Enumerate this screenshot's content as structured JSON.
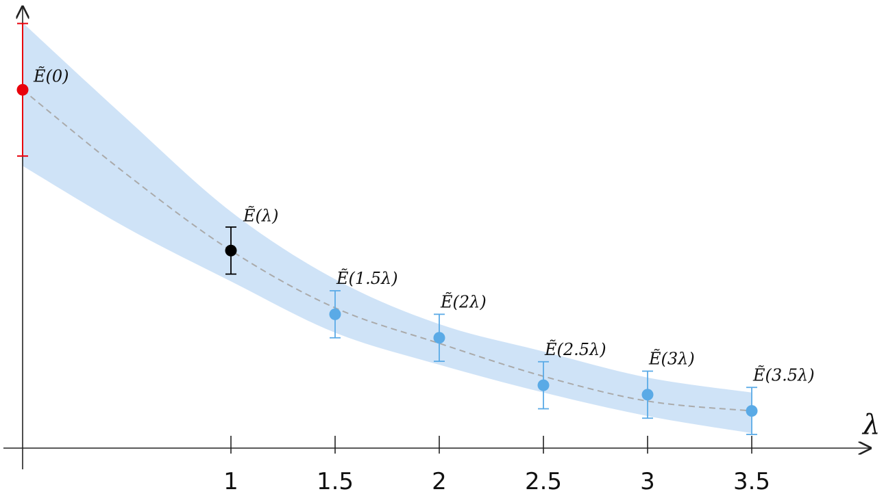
{
  "chart_data": {
    "type": "scatter",
    "title": "",
    "xlabel": "λ",
    "ylabel": "",
    "xlim": [
      0,
      4.1
    ],
    "ylim": [
      0,
      1
    ],
    "grid": false,
    "x_ticks": [
      "1",
      "1.5",
      "2",
      "2.5",
      "3",
      "3.5"
    ],
    "points": [
      {
        "x": 0,
        "y": 0.838,
        "err": 0.155,
        "label": "Ẽ(0)",
        "color": "#e8000b"
      },
      {
        "x": 1,
        "y": 0.462,
        "err": 0.055,
        "label": "Ẽ(λ)",
        "color": "#000000"
      },
      {
        "x": 1.5,
        "y": 0.313,
        "err": 0.055,
        "label": "Ẽ(1.5λ)",
        "color": "#5aaae6"
      },
      {
        "x": 2,
        "y": 0.258,
        "err": 0.055,
        "label": "Ẽ(2λ)",
        "color": "#5aaae6"
      },
      {
        "x": 2.5,
        "y": 0.147,
        "err": 0.055,
        "label": "Ẽ(2.5λ)",
        "color": "#5aaae6"
      },
      {
        "x": 3,
        "y": 0.125,
        "err": 0.055,
        "label": "Ẽ(3λ)",
        "color": "#5aaae6"
      },
      {
        "x": 3.5,
        "y": 0.087,
        "err": 0.055,
        "label": "Ẽ(3.5λ)",
        "color": "#5aaae6"
      }
    ],
    "fit_curve": {
      "x": [
        0,
        0.5,
        1,
        1.5,
        2,
        2.5,
        3,
        3.5
      ],
      "y": [
        0.838,
        0.64,
        0.462,
        0.328,
        0.245,
        0.168,
        0.11,
        0.087
      ],
      "color": "#aaaaaa",
      "style": "dashed"
    },
    "band": {
      "x": [
        0,
        0.5,
        1,
        1.5,
        2,
        2.5,
        3,
        3.5
      ],
      "upper": [
        0.995,
        0.77,
        0.553,
        0.395,
        0.29,
        0.226,
        0.165,
        0.13
      ],
      "lower": [
        0.66,
        0.515,
        0.39,
        0.27,
        0.195,
        0.13,
        0.075,
        0.035
      ],
      "color": "#cfe3f7"
    }
  }
}
